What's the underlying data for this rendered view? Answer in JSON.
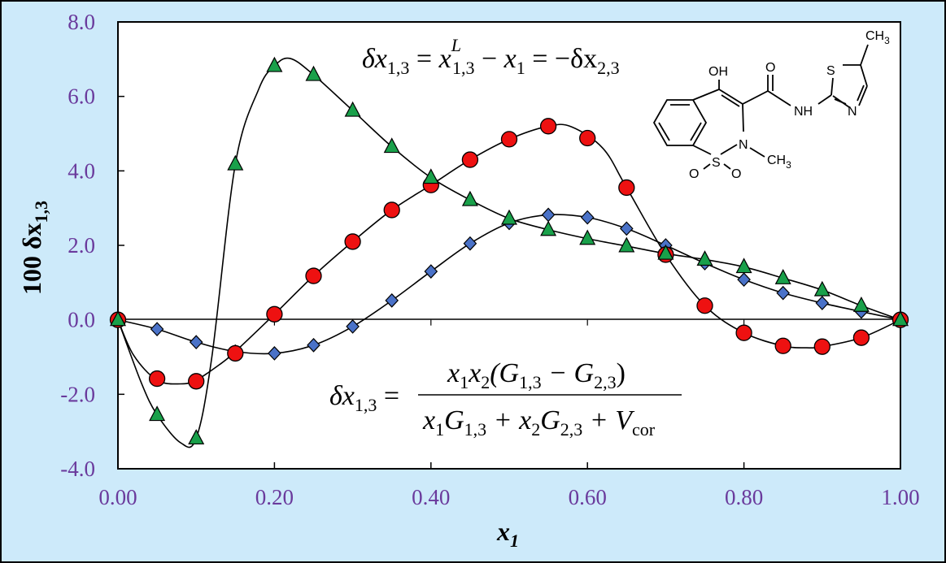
{
  "chart_data": {
    "type": "line",
    "xlabel": "x",
    "xlabel_sub": "1",
    "ylabel": "100 δx",
    "ylabel_sub": "1,3",
    "xlim": [
      0,
      1
    ],
    "ylim": [
      -4,
      8
    ],
    "xticks": [
      "0.00",
      "0.20",
      "0.40",
      "0.60",
      "0.80",
      "1.00"
    ],
    "yticks": [
      "-4.0",
      "-2.0",
      "0.0",
      "2.0",
      "4.0",
      "6.0",
      "8.0"
    ],
    "grid": false,
    "legend": "none",
    "series": [
      {
        "marker": "diamond",
        "color": "#4a72c8",
        "x": [
          0,
          0.05,
          0.1,
          0.15,
          0.2,
          0.25,
          0.3,
          0.35,
          0.4,
          0.45,
          0.5,
          0.55,
          0.6,
          0.65,
          0.7,
          0.75,
          0.8,
          0.85,
          0.9,
          0.95,
          1.0
        ],
        "y": [
          0,
          -0.25,
          -0.6,
          -0.85,
          -0.9,
          -0.68,
          -0.18,
          0.52,
          1.3,
          2.05,
          2.6,
          2.82,
          2.75,
          2.45,
          2.0,
          1.52,
          1.08,
          0.72,
          0.45,
          0.22,
          0
        ]
      },
      {
        "marker": "circle",
        "color": "#ee1111",
        "x": [
          0,
          0.05,
          0.1,
          0.15,
          0.2,
          0.25,
          0.3,
          0.35,
          0.4,
          0.45,
          0.5,
          0.55,
          0.6,
          0.65,
          0.7,
          0.75,
          0.8,
          0.85,
          0.9,
          0.95,
          1.0
        ],
        "y": [
          0,
          -1.58,
          -1.65,
          -0.9,
          0.15,
          1.18,
          2.1,
          2.95,
          3.62,
          4.3,
          4.85,
          5.2,
          4.88,
          3.55,
          1.75,
          0.38,
          -0.35,
          -0.7,
          -0.72,
          -0.48,
          0
        ]
      },
      {
        "marker": "triangle",
        "color": "#19a04a",
        "x": [
          0,
          0.05,
          0.1,
          0.15,
          0.2,
          0.25,
          0.3,
          0.35,
          0.4,
          0.45,
          0.5,
          0.55,
          0.6,
          0.65,
          0.7,
          0.75,
          0.8,
          0.85,
          0.9,
          0.95,
          1.0
        ],
        "y": [
          0,
          -2.55,
          -3.18,
          4.18,
          6.82,
          6.58,
          5.62,
          4.65,
          3.82,
          3.22,
          2.72,
          2.42,
          2.18,
          1.98,
          1.78,
          1.62,
          1.42,
          1.12,
          0.8,
          0.38,
          0
        ]
      }
    ],
    "curves": [
      {
        "color": "#000",
        "x": [
          0,
          0.05,
          0.1,
          0.15,
          0.2,
          0.25,
          0.3,
          0.35,
          0.4,
          0.45,
          0.5,
          0.55,
          0.6,
          0.65,
          0.7,
          0.75,
          0.8,
          0.85,
          0.9,
          0.95,
          1.0
        ],
        "y": [
          0,
          -0.25,
          -0.6,
          -0.85,
          -0.9,
          -0.68,
          -0.18,
          0.52,
          1.3,
          2.05,
          2.6,
          2.82,
          2.75,
          2.45,
          2.0,
          1.52,
          1.08,
          0.72,
          0.45,
          0.22,
          0
        ]
      },
      {
        "color": "#000",
        "x": [
          0,
          0.02,
          0.05,
          0.08,
          0.1,
          0.13,
          0.15,
          0.2,
          0.25,
          0.3,
          0.35,
          0.4,
          0.45,
          0.5,
          0.55,
          0.58,
          0.62,
          0.65,
          0.7,
          0.75,
          0.8,
          0.85,
          0.88,
          0.9,
          0.95,
          1.0
        ],
        "y": [
          0,
          -0.95,
          -1.62,
          -1.72,
          -1.62,
          -1.2,
          -0.85,
          0.15,
          1.18,
          2.1,
          2.95,
          3.62,
          4.3,
          4.85,
          5.2,
          5.18,
          4.6,
          3.55,
          1.75,
          0.38,
          -0.35,
          -0.7,
          -0.75,
          -0.72,
          -0.48,
          0
        ]
      },
      {
        "color": "#000",
        "x": [
          0,
          0.03,
          0.05,
          0.08,
          0.1,
          0.12,
          0.15,
          0.18,
          0.2,
          0.22,
          0.25,
          0.3,
          0.35,
          0.4,
          0.45,
          0.5,
          0.55,
          0.6,
          0.65,
          0.7,
          0.75,
          0.8,
          0.85,
          0.9,
          0.95,
          1.0
        ],
        "y": [
          0,
          -1.7,
          -2.55,
          -3.3,
          -3.18,
          -1.0,
          4.18,
          6.2,
          6.82,
          7.02,
          6.58,
          5.62,
          4.65,
          3.82,
          3.22,
          2.72,
          2.42,
          2.18,
          1.98,
          1.78,
          1.62,
          1.42,
          1.12,
          0.8,
          0.38,
          0
        ]
      }
    ],
    "annotations": {
      "eq_top": [
        "δx",
        "1,3",
        " = ",
        "x",
        "L",
        "1,3",
        " − ",
        "x",
        "1",
        " = −δx",
        "2,3"
      ],
      "eq_bottom": {
        "lhs": [
          "δx",
          "1,3",
          " ="
        ],
        "numerator": [
          "x",
          "1",
          "x",
          "2",
          "(G",
          "1,3",
          " − G",
          "2,3",
          ")"
        ],
        "denominator": [
          "x",
          "1",
          "G",
          "1,3",
          " + x",
          "2",
          "G",
          "2,3",
          " + V",
          "cor"
        ]
      }
    },
    "molecule_labels": {
      "oh": "OH",
      "o_carbonyl": "O",
      "s_thiazole": "S",
      "ch3_top": "CH",
      "ch3_top_sub": "3",
      "nh": "NH",
      "n_thiazole": "N",
      "n_ring": "N",
      "ch3_n": "CH",
      "ch3_n_sub": "3",
      "o_left": "O",
      "s_sulfonyl": "S",
      "o_right": "O"
    }
  }
}
